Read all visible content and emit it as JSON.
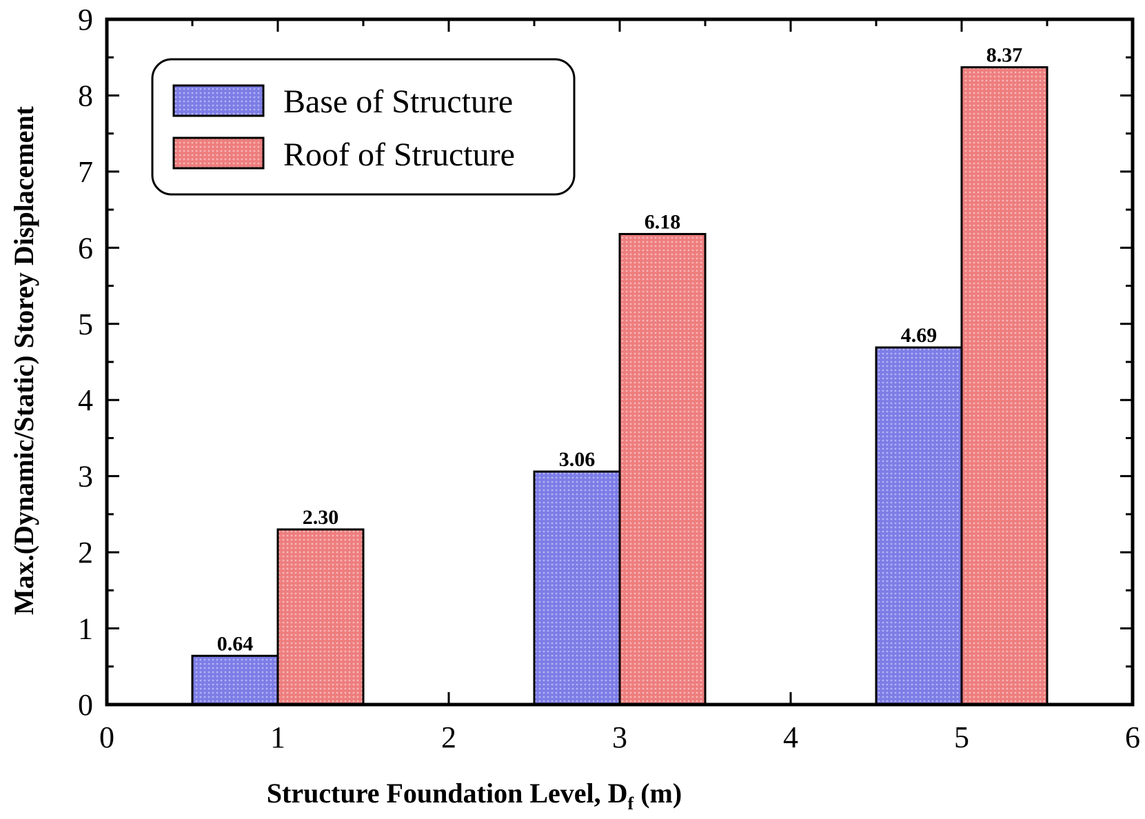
{
  "chart_data": {
    "type": "bar",
    "title": "",
    "xlabel_main": "Structure Foundation Level, D",
    "xlabel_sub": "f",
    "xlabel_unit": " (m)",
    "ylabel": "Max.(Dynamic/Static) Storey Displacement",
    "xlim": [
      0,
      6
    ],
    "ylim": [
      0,
      9
    ],
    "xticks": [
      0,
      1,
      2,
      3,
      4,
      5,
      6
    ],
    "yticks": [
      0,
      1,
      2,
      3,
      4,
      5,
      6,
      7,
      8,
      9
    ],
    "x": [
      1,
      3,
      5
    ],
    "bar_width": 0.5,
    "legend_position": "top-left",
    "grid": false,
    "series": [
      {
        "name": "Base of Structure",
        "color": "#8a8aee",
        "values": [
          0.64,
          3.06,
          4.69
        ],
        "labels": [
          "0.64",
          "3.06",
          "4.69"
        ]
      },
      {
        "name": "Roof of Structure",
        "color": "#f08a8a",
        "values": [
          2.3,
          6.18,
          8.37
        ],
        "labels": [
          "2.30",
          "6.18",
          "8.37"
        ]
      }
    ]
  }
}
